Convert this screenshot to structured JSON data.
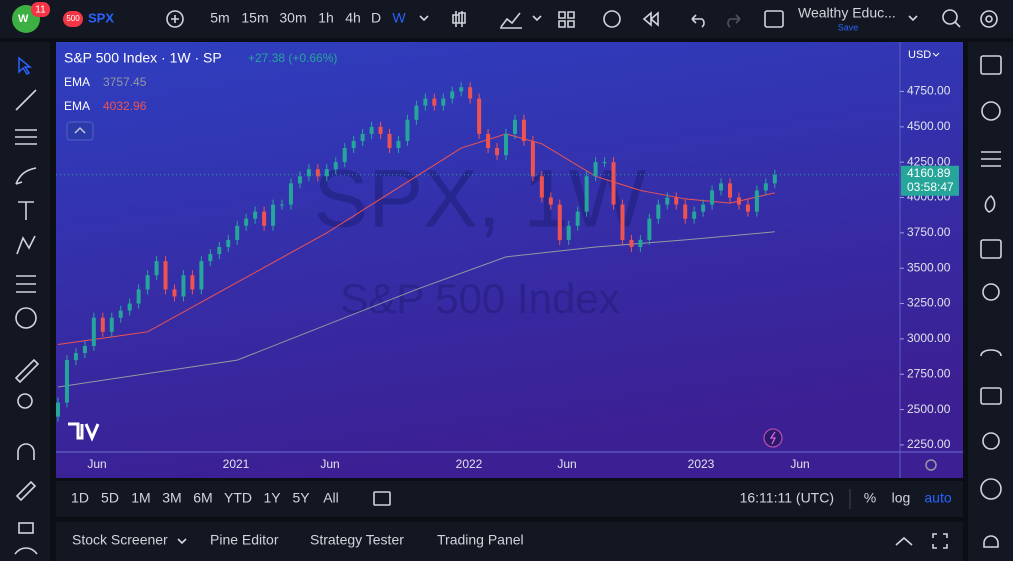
{
  "header": {
    "badge": "11",
    "symbol_badge": "500",
    "symbol": "SPX",
    "intervals": [
      "5m",
      "15m",
      "30m",
      "1h",
      "4h",
      "D",
      "W"
    ],
    "account": "Wealthy Educ...",
    "save": "Save"
  },
  "chart_data": {
    "type": "candlestick",
    "title": "S&P 500 Index · 1W · SP",
    "change": "+27.38 (+0.66%)",
    "watermark": "SPX, 1W",
    "watermark_subtitle": "S&P 500 Index",
    "currency": "USD",
    "first_open": 2450,
    "closes": [
      2550,
      2850,
      2900,
      2950,
      3150,
      3050,
      3150,
      3200,
      3250,
      3350,
      3450,
      3550,
      3350,
      3300,
      3450,
      3350,
      3550,
      3600,
      3650,
      3700,
      3800,
      3850,
      3900,
      3800,
      3950,
      3950,
      4100,
      4150,
      4200,
      4150,
      4200,
      4250,
      4350,
      4400,
      4450,
      4500,
      4450,
      4350,
      4400,
      4550,
      4650,
      4700,
      4650,
      4700,
      4750,
      4780,
      4700,
      4450,
      4350,
      4300,
      4450,
      4550,
      4400,
      4150,
      4000,
      3950,
      3700,
      3800,
      3900,
      4150,
      4250,
      4250,
      3950,
      3700,
      3650,
      3700,
      3850,
      3950,
      4000,
      3950,
      3850,
      3900,
      3950,
      4050,
      4100,
      4000,
      3950,
      3900,
      4050,
      4100,
      4160.89
    ],
    "up_color": "#26a69a",
    "down_color": "#ef5350",
    "ylim": [
      2200,
      5100
    ],
    "yticks": [
      {
        "value": 2250,
        "label": "2250.00"
      },
      {
        "value": 2500,
        "label": "2500.00"
      },
      {
        "value": 2750,
        "label": "2750.00"
      },
      {
        "value": 3000,
        "label": "3000.00"
      },
      {
        "value": 3250,
        "label": "3250.00"
      },
      {
        "value": 3500,
        "label": "3500.00"
      },
      {
        "value": 3750,
        "label": "3750.00"
      },
      {
        "value": 4000,
        "label": "4000.00"
      },
      {
        "value": 4250,
        "label": "4250.00"
      },
      {
        "value": 4500,
        "label": "4500.00"
      },
      {
        "value": 4750,
        "label": "4750.00"
      }
    ],
    "x_labels": [
      "Jun",
      "2021",
      "Jun",
      "2022",
      "Jun",
      "2023",
      "Jun"
    ],
    "series": [
      {
        "name": "EMA",
        "color": "#9598a1",
        "x": [
          0,
          20,
          40,
          50,
          60,
          70,
          80
        ],
        "values": [
          2660,
          2850,
          3350,
          3580,
          3650,
          3700,
          3757.45
        ]
      },
      {
        "name": "EMA",
        "color": "#ef5350",
        "x": [
          0,
          10,
          20,
          30,
          40,
          45,
          50,
          54,
          60,
          65,
          70,
          75,
          80
        ],
        "values": [
          2960,
          3050,
          3400,
          3750,
          4150,
          4350,
          4450,
          4380,
          4150,
          4050,
          3990,
          3960,
          4032.96
        ]
      }
    ],
    "countdown": "03:58:47"
  },
  "footer": {
    "ranges": [
      "1D",
      "5D",
      "1M",
      "3M",
      "6M",
      "YTD",
      "1Y",
      "5Y",
      "All"
    ],
    "time": "16:11:11 (UTC)",
    "scale_options": [
      "%",
      "log",
      "auto"
    ],
    "tabs": [
      "Stock Screener",
      "Pine Editor",
      "Strategy Tester",
      "Trading Panel"
    ]
  }
}
